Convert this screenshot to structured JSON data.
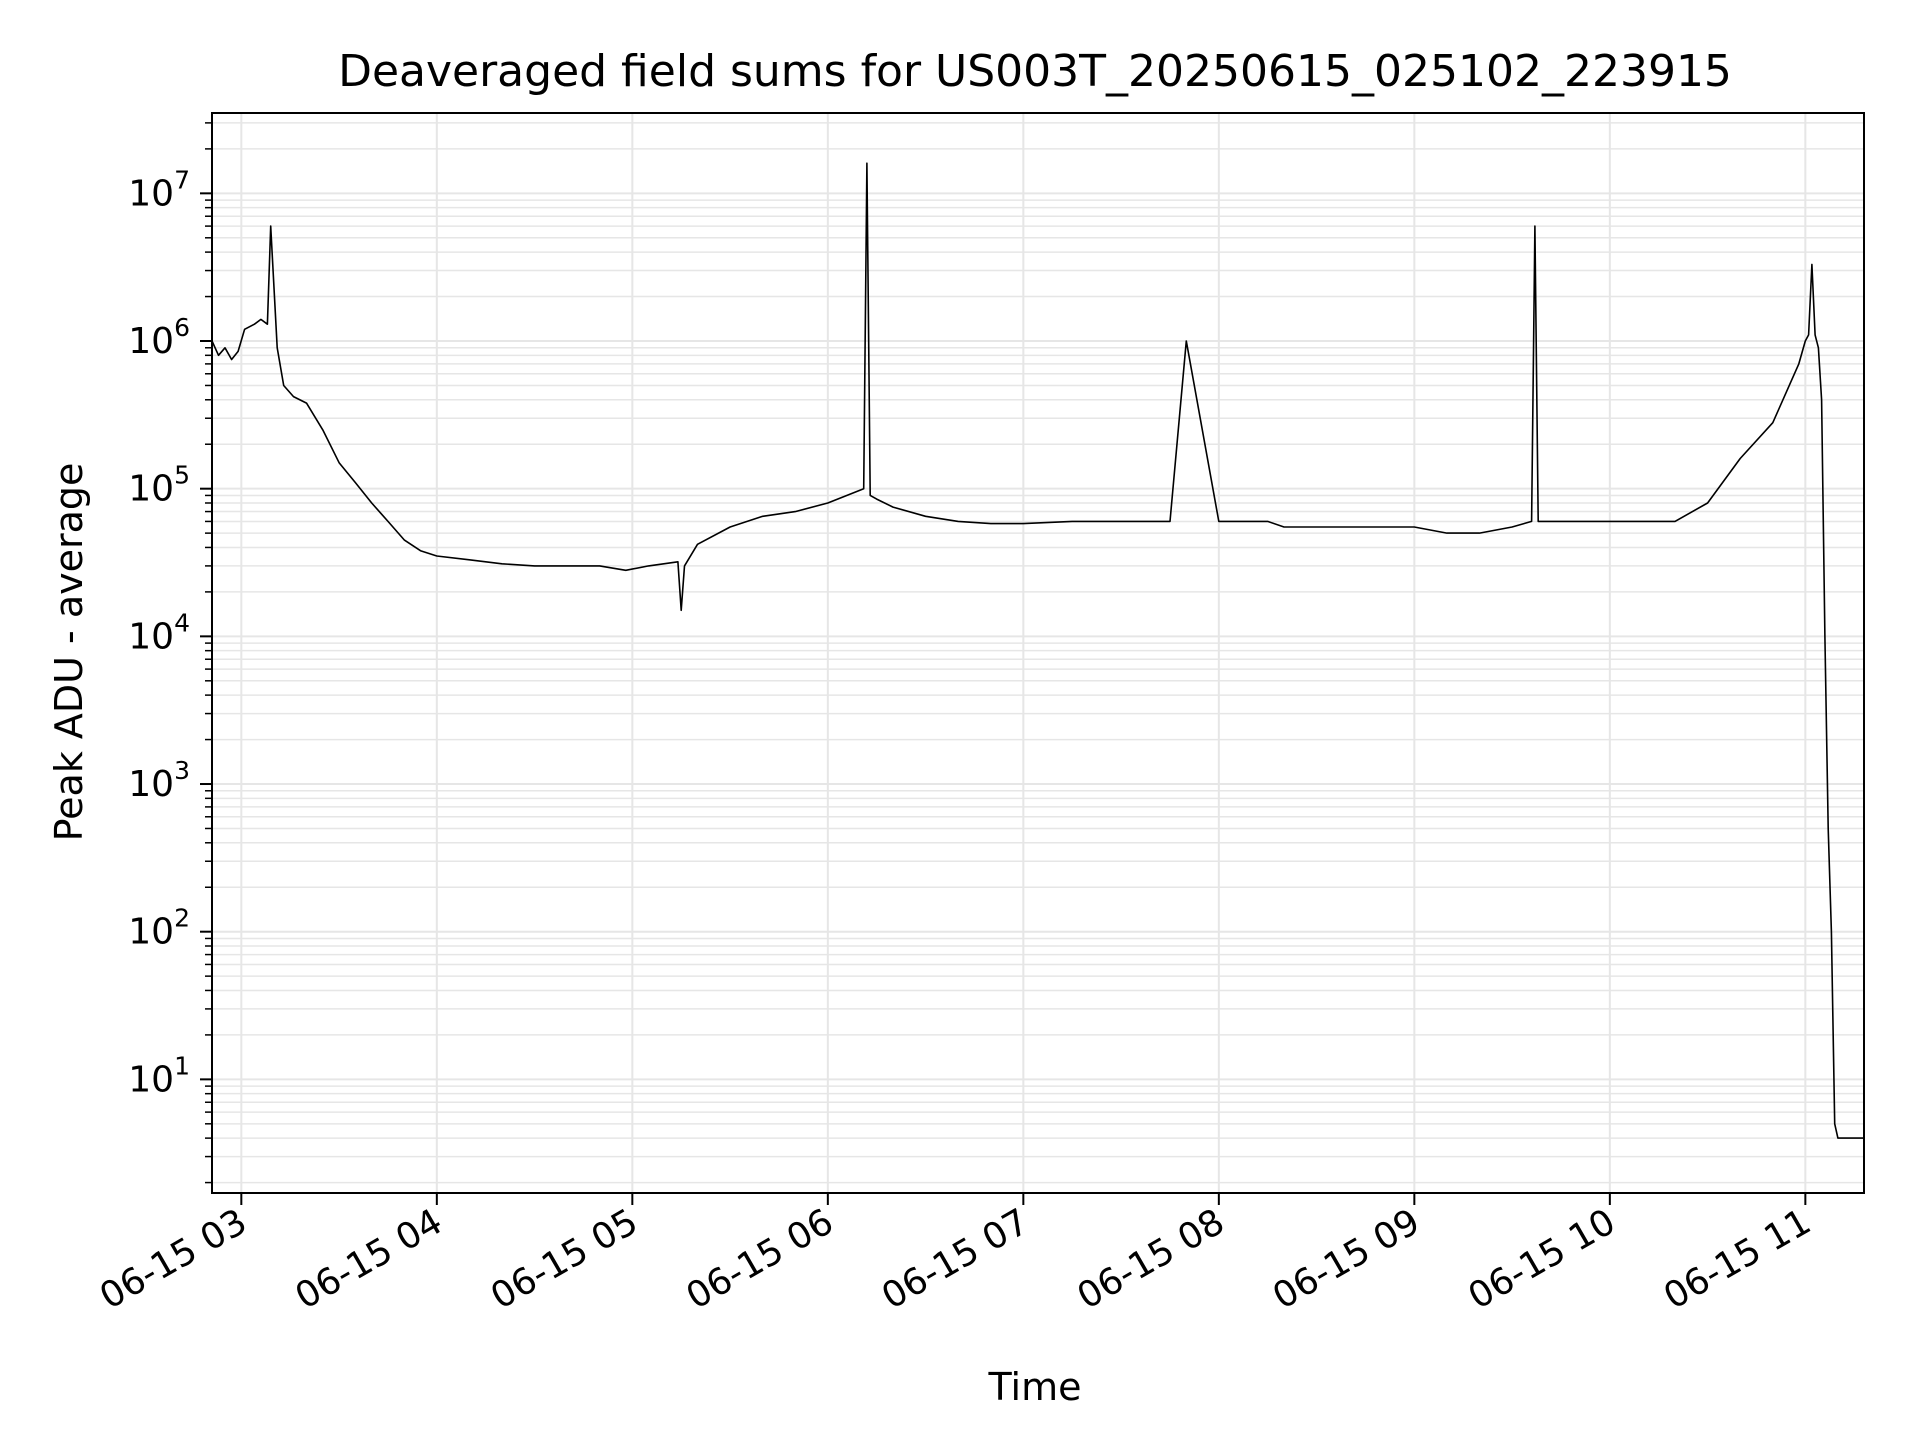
{
  "chart_data": {
    "type": "line",
    "title": "Deaveraged field sums for US003T_20250615_025102_223915",
    "xlabel": "Time",
    "ylabel": "Peak ADU - average",
    "yscale": "log",
    "grid": true,
    "line_color": "#000000",
    "grid_color": "#e6e6e6",
    "xlim": [
      "2025-06-15 02:51",
      "2025-06-15 11:18"
    ],
    "ylim": [
      1.7,
      35000000
    ],
    "x_ticks": [
      {
        "value": "2025-06-15 03:00",
        "label": "06-15 03"
      },
      {
        "value": "2025-06-15 04:00",
        "label": "06-15 04"
      },
      {
        "value": "2025-06-15 05:00",
        "label": "06-15 05"
      },
      {
        "value": "2025-06-15 06:00",
        "label": "06-15 06"
      },
      {
        "value": "2025-06-15 07:00",
        "label": "06-15 07"
      },
      {
        "value": "2025-06-15 08:00",
        "label": "06-15 08"
      },
      {
        "value": "2025-06-15 09:00",
        "label": "06-15 09"
      },
      {
        "value": "2025-06-15 10:00",
        "label": "06-15 10"
      },
      {
        "value": "2025-06-15 11:00",
        "label": "06-15 11"
      }
    ],
    "y_ticks": [
      {
        "value": 10,
        "base": "10",
        "exp": "1"
      },
      {
        "value": 100,
        "base": "10",
        "exp": "2"
      },
      {
        "value": 1000,
        "base": "10",
        "exp": "3"
      },
      {
        "value": 10000,
        "base": "10",
        "exp": "4"
      },
      {
        "value": 100000,
        "base": "10",
        "exp": "5"
      },
      {
        "value": 1000000,
        "base": "10",
        "exp": "6"
      },
      {
        "value": 10000000,
        "base": "10",
        "exp": "7"
      }
    ],
    "series": [
      {
        "x": [
          "2025-06-15 02:51",
          "2025-06-15 02:53",
          "2025-06-15 02:55",
          "2025-06-15 02:57",
          "2025-06-15 02:59",
          "2025-06-15 03:01",
          "2025-06-15 03:04",
          "2025-06-15 03:06",
          "2025-06-15 03:08",
          "2025-06-15 03:09",
          "2025-06-15 03:11",
          "2025-06-15 03:13",
          "2025-06-15 03:16",
          "2025-06-15 03:20",
          "2025-06-15 03:25",
          "2025-06-15 03:30",
          "2025-06-15 03:35",
          "2025-06-15 03:40",
          "2025-06-15 03:45",
          "2025-06-15 03:50",
          "2025-06-15 03:55",
          "2025-06-15 04:00",
          "2025-06-15 04:10",
          "2025-06-15 04:20",
          "2025-06-15 04:30",
          "2025-06-15 04:40",
          "2025-06-15 04:50",
          "2025-06-15 04:58",
          "2025-06-15 05:05",
          "2025-06-15 05:14",
          "2025-06-15 05:15",
          "2025-06-15 05:16",
          "2025-06-15 05:20",
          "2025-06-15 05:30",
          "2025-06-15 05:40",
          "2025-06-15 05:50",
          "2025-06-15 06:00",
          "2025-06-15 06:11",
          "2025-06-15 06:12",
          "2025-06-15 06:13",
          "2025-06-15 06:15",
          "2025-06-15 06:20",
          "2025-06-15 06:30",
          "2025-06-15 06:40",
          "2025-06-15 06:50",
          "2025-06-15 07:00",
          "2025-06-15 07:15",
          "2025-06-15 07:30",
          "2025-06-15 07:45",
          "2025-06-15 07:50",
          "2025-06-15 08:00",
          "2025-06-15 08:15",
          "2025-06-15 08:20",
          "2025-06-15 08:30",
          "2025-06-15 08:45",
          "2025-06-15 09:00",
          "2025-06-15 09:10",
          "2025-06-15 09:20",
          "2025-06-15 09:30",
          "2025-06-15 09:36",
          "2025-06-15 09:37",
          "2025-06-15 09:38",
          "2025-06-15 09:45",
          "2025-06-15 10:00",
          "2025-06-15 10:10",
          "2025-06-15 10:20",
          "2025-06-15 10:30",
          "2025-06-15 10:40",
          "2025-06-15 10:50",
          "2025-06-15 10:58",
          "2025-06-15 11:00",
          "2025-06-15 11:01",
          "2025-06-15 11:02",
          "2025-06-15 11:03",
          "2025-06-15 11:04",
          "2025-06-15 11:05",
          "2025-06-15 11:06",
          "2025-06-15 11:07",
          "2025-06-15 11:08",
          "2025-06-15 11:09",
          "2025-06-15 11:10",
          "2025-06-15 11:18"
        ],
        "y": [
          1000000,
          800000,
          900000,
          750000,
          850000,
          1200000,
          1300000,
          1400000,
          1300000,
          6000000,
          900000,
          500000,
          420000,
          380000,
          250000,
          150000,
          110000,
          80000,
          60000,
          45000,
          38000,
          35000,
          33000,
          31000,
          30000,
          30000,
          30000,
          28000,
          30000,
          32000,
          15000,
          30000,
          42000,
          55000,
          65000,
          70000,
          80000,
          100000,
          16000000,
          90000,
          85000,
          75000,
          65000,
          60000,
          58000,
          58000,
          60000,
          60000,
          60000,
          1000000,
          60000,
          60000,
          55000,
          55000,
          55000,
          55000,
          50000,
          50000,
          55000,
          60000,
          6000000,
          60000,
          60000,
          60000,
          60000,
          60000,
          80000,
          160000,
          280000,
          700000,
          1000000,
          1100000,
          3300000,
          1100000,
          900000,
          400000,
          10000,
          500,
          100,
          5,
          4,
          4
        ]
      }
    ]
  }
}
